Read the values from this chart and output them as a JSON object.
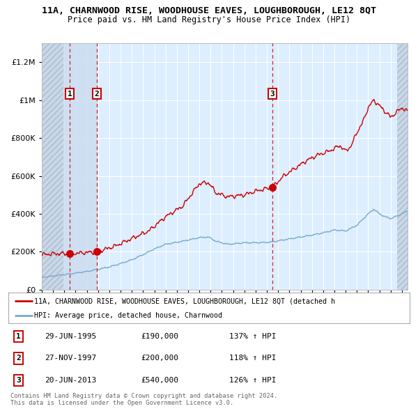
{
  "title": "11A, CHARNWOOD RISE, WOODHOUSE EAVES, LOUGHBOROUGH, LE12 8QT",
  "subtitle": "Price paid vs. HM Land Registry's House Price Index (HPI)",
  "sale_dates": [
    1995.49,
    1997.9,
    2013.47
  ],
  "sale_prices": [
    190000,
    200000,
    540000
  ],
  "sale_labels": [
    "1",
    "2",
    "3"
  ],
  "hpi_line_color": "#cc0000",
  "hpi_avg_color": "#77aacc",
  "transactions": [
    {
      "num": "1",
      "date": "29-JUN-1995",
      "price": "£190,000",
      "hpi": "137% ↑ HPI"
    },
    {
      "num": "2",
      "date": "27-NOV-1997",
      "price": "£200,000",
      "hpi": "118% ↑ HPI"
    },
    {
      "num": "3",
      "date": "20-JUN-2013",
      "price": "£540,000",
      "hpi": "126% ↑ HPI"
    }
  ],
  "legend_line1": "11A, CHARNWOOD RISE, WOODHOUSE EAVES, LOUGHBOROUGH, LE12 8QT (detached h",
  "legend_line2": "HPI: Average price, detached house, Charnwood",
  "footer": "Contains HM Land Registry data © Crown copyright and database right 2024.\nThis data is licensed under the Open Government Licence v3.0.",
  "xmin": 1993.0,
  "xmax": 2025.5,
  "ymin": 0,
  "ymax": 1300000,
  "hatch_left_xmax": 1994.9,
  "hatch_right_xmin": 2024.6,
  "shade_between_x1": 1994.9,
  "shade_between_x2": 1997.95,
  "plot_bg": "#ddeeff",
  "shade_between_color": "#ccddf0"
}
